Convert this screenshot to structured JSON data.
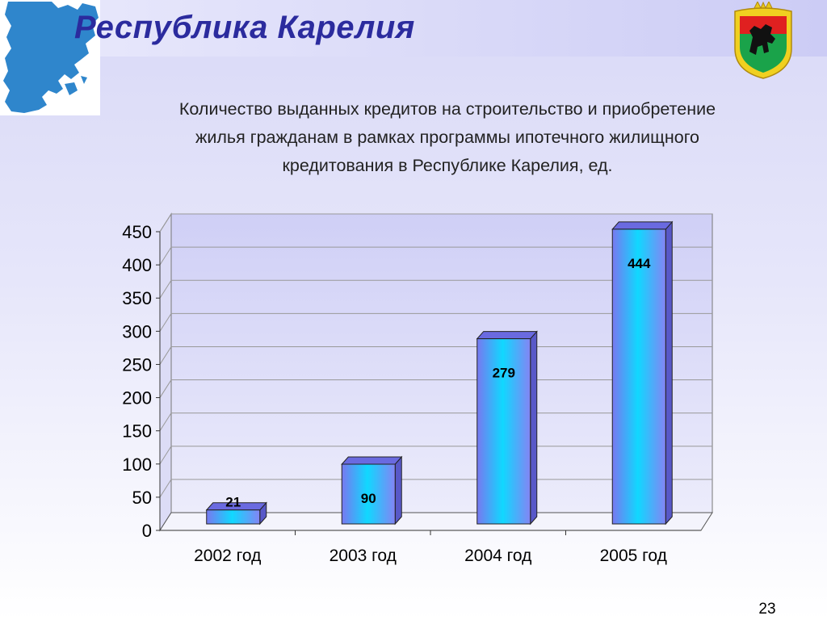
{
  "header": {
    "title": "Республика Карелия"
  },
  "chart_data": {
    "type": "bar",
    "title": "Количество выданных кредитов на строительство и приобретение жилья гражданам в рамках программы ипотечного жилищного кредитования в Республике Карелия, ед.",
    "title_lines": [
      "Количество выданных кредитов на строительство и приобретение",
      "жилья гражданам в рамках программы ипотечного жилищного",
      "кредитования в Республике Карелия, ед."
    ],
    "categories": [
      "2002 год",
      "2003 год",
      "2004 год",
      "2005 год"
    ],
    "values": [
      21,
      90,
      279,
      444
    ],
    "value_labels": [
      "21",
      "90",
      "279",
      "444"
    ],
    "ylim": [
      0,
      450
    ],
    "yticks": [
      0,
      50,
      100,
      150,
      200,
      250,
      300,
      350,
      400,
      450
    ],
    "ytick_labels": [
      "0",
      "50",
      "100",
      "150",
      "200",
      "250",
      "300",
      "350",
      "400",
      "450"
    ],
    "xlabel": "",
    "ylabel": "",
    "grid": true,
    "legend": "none",
    "style": "3d-bar",
    "bar_color": "#8080ff",
    "bar_highlight_color": "#00ccff"
  },
  "footer": {
    "page_number": "23"
  }
}
